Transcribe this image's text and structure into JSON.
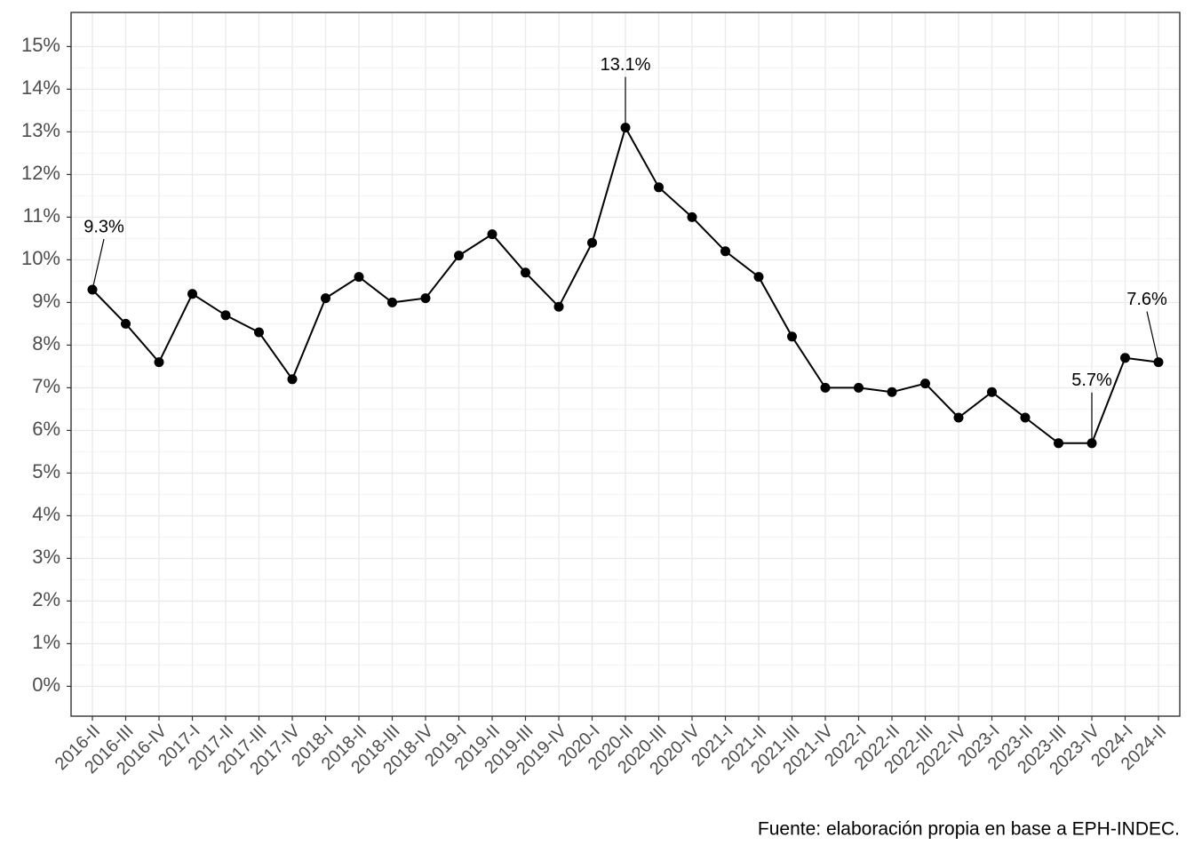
{
  "chart_data": {
    "type": "line",
    "caption": "Fuente: elaboración propia en base a EPH-INDEC.",
    "categories": [
      "2016-II",
      "2016-III",
      "2016-IV",
      "2017-I",
      "2017-II",
      "2017-III",
      "2017-IV",
      "2018-I",
      "2018-II",
      "2018-III",
      "2018-IV",
      "2019-I",
      "2019-II",
      "2019-III",
      "2019-IV",
      "2020-I",
      "2020-II",
      "2020-III",
      "2020-IV",
      "2021-I",
      "2021-II",
      "2021-III",
      "2021-IV",
      "2022-I",
      "2022-II",
      "2022-III",
      "2022-IV",
      "2023-I",
      "2023-II",
      "2023-III",
      "2023-IV",
      "2024-I",
      "2024-II"
    ],
    "values": [
      9.3,
      8.5,
      7.6,
      9.2,
      8.7,
      8.3,
      7.2,
      9.1,
      9.6,
      9.0,
      9.1,
      10.1,
      10.6,
      9.7,
      8.9,
      10.4,
      13.1,
      11.7,
      11.0,
      10.2,
      9.6,
      8.2,
      7.0,
      7.0,
      6.9,
      7.1,
      6.3,
      6.9,
      6.3,
      5.7,
      5.7,
      7.7,
      7.6
    ],
    "value_labels": [
      "9.3%",
      null,
      null,
      null,
      null,
      null,
      null,
      null,
      null,
      null,
      null,
      null,
      null,
      null,
      null,
      null,
      "13.1%",
      null,
      null,
      null,
      null,
      null,
      null,
      null,
      null,
      null,
      null,
      null,
      null,
      null,
      "5.7%",
      null,
      "7.6%"
    ],
    "color": "#000000",
    "ylim": [
      -0.7,
      15.8
    ],
    "yticks": [
      {
        "value": 0,
        "label": "0%"
      },
      {
        "value": 1,
        "label": "1%"
      },
      {
        "value": 2,
        "label": "2%"
      },
      {
        "value": 3,
        "label": "3%"
      },
      {
        "value": 4,
        "label": "4%"
      },
      {
        "value": 5,
        "label": "5%"
      },
      {
        "value": 6,
        "label": "6%"
      },
      {
        "value": 7,
        "label": "7%"
      },
      {
        "value": 8,
        "label": "8%"
      },
      {
        "value": 9,
        "label": "9%"
      },
      {
        "value": 10,
        "label": "10%"
      },
      {
        "value": 11,
        "label": "11%"
      },
      {
        "value": 12,
        "label": "12%"
      },
      {
        "value": 13,
        "label": "13%"
      },
      {
        "value": 14,
        "label": "14%"
      },
      {
        "value": 15,
        "label": "15%"
      }
    ],
    "grid": true
  }
}
